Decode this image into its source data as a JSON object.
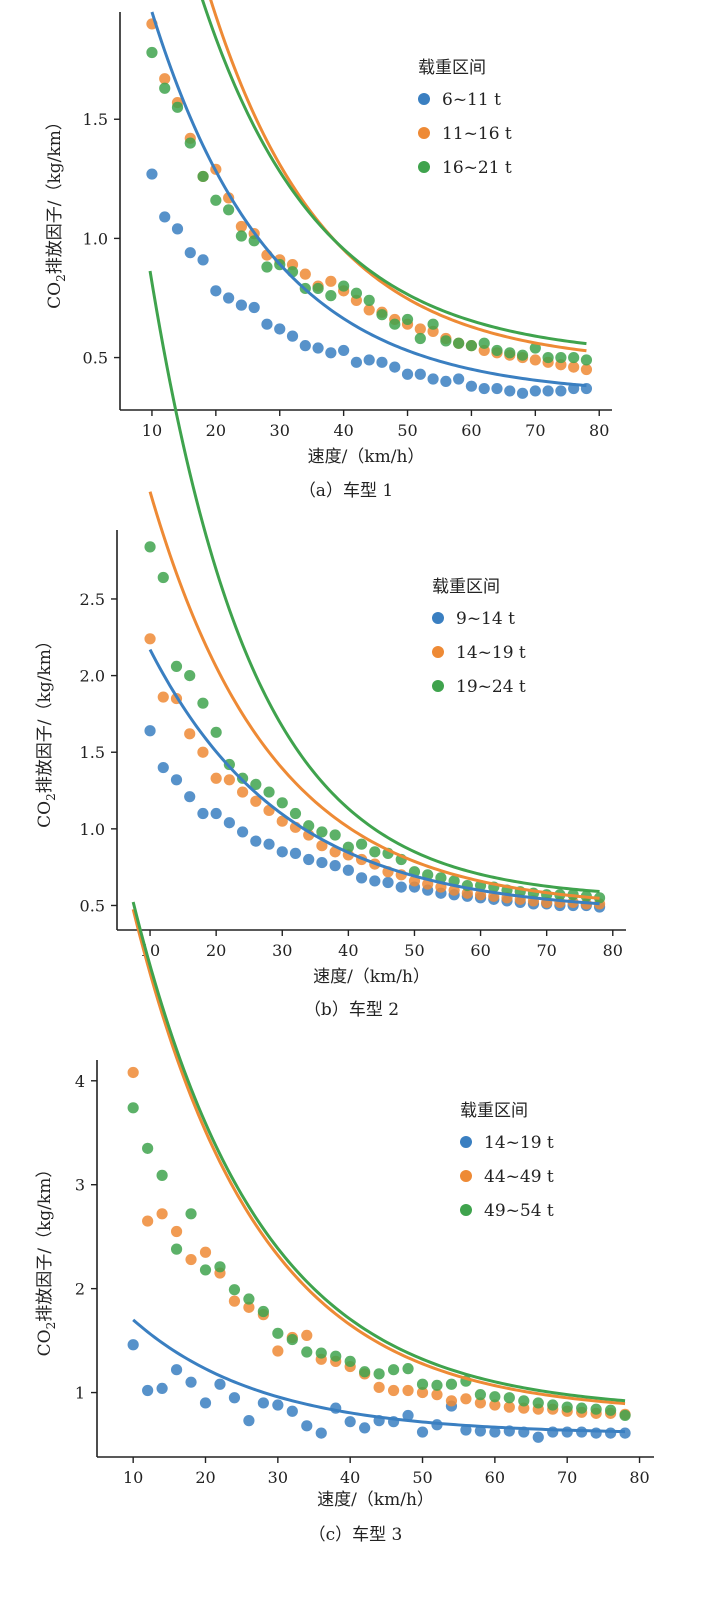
{
  "chart_data": [
    {
      "type": "scatter",
      "caption": "（a）车型 1",
      "xlabel": "速度/（km/h）",
      "ylabel_prefix": "CO",
      "ylabel_sub": "2",
      "ylabel_suffix": "排放因子/（kg/km）",
      "legend_title": "载重区间",
      "legend_position": "top-right",
      "grid": false,
      "xlim": [
        5,
        82
      ],
      "ylim": [
        0.28,
        1.95
      ],
      "xticks": [
        10,
        20,
        30,
        40,
        50,
        60,
        70,
        80
      ],
      "yticks": [
        0.5,
        1.0,
        1.5
      ],
      "ytick_labels": [
        "0.5",
        "1.0",
        "1.5"
      ],
      "x": [
        10,
        12,
        14,
        16,
        18,
        20,
        22,
        24,
        26,
        28,
        30,
        32,
        34,
        36,
        38,
        40,
        42,
        44,
        46,
        48,
        50,
        52,
        54,
        56,
        58,
        60,
        62,
        64,
        66,
        68,
        70,
        72,
        74,
        76,
        78
      ],
      "series": [
        {
          "name": "6~11 t",
          "color": "#3a7fc1",
          "values": [
            1.27,
            1.09,
            1.04,
            0.94,
            0.91,
            0.78,
            0.75,
            0.72,
            0.71,
            0.64,
            0.62,
            0.59,
            0.55,
            0.54,
            0.52,
            0.53,
            0.48,
            0.49,
            0.48,
            0.46,
            0.43,
            0.43,
            0.41,
            0.4,
            0.41,
            0.38,
            0.37,
            0.37,
            0.36,
            0.35,
            0.36,
            0.36,
            0.36,
            0.37,
            0.37
          ],
          "fit": {
            "a": 1.61,
            "k": 0.0535,
            "c": 0.34
          }
        },
        {
          "name": "11~16 t",
          "color": "#ee8a35",
          "values": [
            1.9,
            1.67,
            1.57,
            1.42,
            1.26,
            1.29,
            1.17,
            1.05,
            1.02,
            0.93,
            0.91,
            0.89,
            0.85,
            0.8,
            0.82,
            0.78,
            0.74,
            0.7,
            0.69,
            0.66,
            0.64,
            0.62,
            0.61,
            0.58,
            0.56,
            0.55,
            0.53,
            0.52,
            0.51,
            0.5,
            0.49,
            0.48,
            0.47,
            0.46,
            0.45
          ],
          "fit": {
            "a": 2.55,
            "k": 0.0555,
            "c": 0.47
          }
        },
        {
          "name": "16~21 t",
          "color": "#3fa34d",
          "values": [
            1.78,
            1.63,
            1.55,
            1.4,
            1.26,
            1.16,
            1.12,
            1.01,
            0.99,
            0.88,
            0.89,
            0.86,
            0.79,
            0.79,
            0.76,
            0.8,
            0.77,
            0.74,
            0.68,
            0.64,
            0.66,
            0.58,
            0.64,
            0.57,
            0.56,
            0.55,
            0.56,
            0.53,
            0.52,
            0.51,
            0.54,
            0.5,
            0.5,
            0.5,
            0.49
          ],
          "fit": {
            "a": 2.3,
            "k": 0.054,
            "c": 0.5
          }
        }
      ]
    },
    {
      "type": "scatter",
      "caption": "（b）车型 2",
      "xlabel": "速度/（km/h）",
      "ylabel_prefix": "CO",
      "ylabel_sub": "2",
      "ylabel_suffix": "排放因子/（kg/km）",
      "legend_title": "载重区间",
      "legend_position": "top-right",
      "grid": false,
      "xlim": [
        5,
        82
      ],
      "ylim": [
        0.34,
        2.95
      ],
      "xticks": [
        10,
        20,
        30,
        40,
        50,
        60,
        70,
        80
      ],
      "yticks": [
        0.5,
        1.0,
        1.5,
        2.0,
        2.5
      ],
      "ytick_labels": [
        "0.5",
        "1.0",
        "1.5",
        "2.0",
        "2.5"
      ],
      "x": [
        10,
        12,
        14,
        16,
        18,
        20,
        22,
        24,
        26,
        28,
        30,
        32,
        34,
        36,
        38,
        40,
        42,
        44,
        46,
        48,
        50,
        52,
        54,
        56,
        58,
        60,
        62,
        64,
        66,
        68,
        70,
        72,
        74,
        76,
        78
      ],
      "series": [
        {
          "name": "9~14 t",
          "color": "#3a7fc1",
          "values": [
            1.64,
            1.4,
            1.32,
            1.21,
            1.1,
            1.1,
            1.04,
            0.98,
            0.92,
            0.9,
            0.85,
            0.84,
            0.8,
            0.78,
            0.76,
            0.73,
            0.68,
            0.66,
            0.65,
            0.62,
            0.62,
            0.6,
            0.58,
            0.57,
            0.56,
            0.55,
            0.54,
            0.53,
            0.52,
            0.51,
            0.51,
            0.5,
            0.5,
            0.5,
            0.49
          ],
          "fit": {
            "a": 1.72,
            "k": 0.049,
            "c": 0.45
          }
        },
        {
          "name": "14~19 t",
          "color": "#ee8a35",
          "values": [
            2.24,
            1.86,
            1.85,
            1.62,
            1.5,
            1.33,
            1.32,
            1.24,
            1.18,
            1.12,
            1.05,
            1.01,
            0.96,
            0.89,
            0.85,
            0.83,
            0.8,
            0.77,
            0.72,
            0.7,
            0.66,
            0.64,
            0.62,
            0.6,
            0.58,
            0.57,
            0.56,
            0.55,
            0.54,
            0.53,
            0.52,
            0.52,
            0.52,
            0.51,
            0.51
          ],
          "fit": {
            "a": 2.72,
            "k": 0.0545,
            "c": 0.48
          }
        },
        {
          "name": "19~24 t",
          "color": "#3fa34d",
          "values": [
            2.84,
            2.64,
            2.06,
            2.0,
            1.82,
            1.63,
            1.42,
            1.33,
            1.29,
            1.24,
            1.17,
            1.1,
            1.02,
            0.98,
            0.96,
            0.88,
            0.9,
            0.85,
            0.84,
            0.8,
            0.72,
            0.7,
            0.68,
            0.66,
            0.63,
            0.63,
            0.62,
            0.6,
            0.59,
            0.58,
            0.57,
            0.57,
            0.57,
            0.56,
            0.55
          ],
          "fit": {
            "a": 4.1,
            "k": 0.0645,
            "c": 0.54
          }
        }
      ]
    },
    {
      "type": "scatter",
      "caption": "（c）车型 3",
      "xlabel": "速度/（km/h）",
      "ylabel_prefix": "CO",
      "ylabel_sub": "2",
      "ylabel_suffix": "排放因子/（kg/km）",
      "legend_title": "载重区间",
      "legend_position": "top-right",
      "grid": false,
      "xlim": [
        5,
        82
      ],
      "ylim": [
        0.38,
        4.2
      ],
      "xticks": [
        10,
        20,
        30,
        40,
        50,
        60,
        70,
        80
      ],
      "yticks": [
        1,
        2,
        3,
        4
      ],
      "ytick_labels": [
        "1",
        "2",
        "3",
        "4"
      ],
      "x": [
        10,
        12,
        14,
        16,
        18,
        20,
        22,
        24,
        26,
        28,
        30,
        32,
        34,
        36,
        38,
        40,
        42,
        44,
        46,
        48,
        50,
        52,
        54,
        56,
        58,
        60,
        62,
        64,
        66,
        68,
        70,
        72,
        74,
        76,
        78
      ],
      "series": [
        {
          "name": "14~19 t",
          "color": "#3a7fc1",
          "values": [
            1.46,
            1.02,
            1.04,
            1.22,
            1.1,
            0.9,
            1.08,
            0.95,
            0.73,
            0.9,
            0.88,
            0.82,
            0.68,
            0.61,
            0.85,
            0.72,
            0.66,
            0.73,
            0.72,
            0.78,
            0.62,
            0.69,
            0.87,
            0.64,
            0.63,
            0.62,
            0.63,
            0.62,
            0.57,
            0.62,
            0.62,
            0.62,
            0.61,
            0.61,
            0.61
          ],
          "fit": {
            "a": 1.1,
            "k": 0.056,
            "c": 0.6
          }
        },
        {
          "name": "44~49 t",
          "color": "#ee8a35",
          "values": [
            4.08,
            2.65,
            2.72,
            2.55,
            2.28,
            2.35,
            2.15,
            1.88,
            1.82,
            1.75,
            1.4,
            1.53,
            1.55,
            1.32,
            1.3,
            1.25,
            1.18,
            1.05,
            1.02,
            1.02,
            1.0,
            0.98,
            0.92,
            0.94,
            0.9,
            0.88,
            0.86,
            0.85,
            0.84,
            0.84,
            0.82,
            0.81,
            0.8,
            0.8,
            0.79
          ],
          "fit": {
            "a": 4.85,
            "k": 0.058,
            "c": 0.8
          }
        },
        {
          "name": "49~54 t",
          "color": "#3fa34d",
          "values": [
            3.74,
            3.35,
            3.09,
            2.38,
            2.72,
            2.18,
            2.21,
            1.99,
            1.9,
            1.78,
            1.57,
            1.51,
            1.39,
            1.38,
            1.35,
            1.3,
            1.2,
            1.18,
            1.22,
            1.23,
            1.08,
            1.07,
            1.08,
            1.11,
            0.98,
            0.96,
            0.95,
            0.92,
            0.9,
            0.88,
            0.86,
            0.85,
            0.84,
            0.83,
            0.78
          ],
          "fit": {
            "a": 4.9,
            "k": 0.057,
            "c": 0.82
          }
        }
      ]
    }
  ]
}
